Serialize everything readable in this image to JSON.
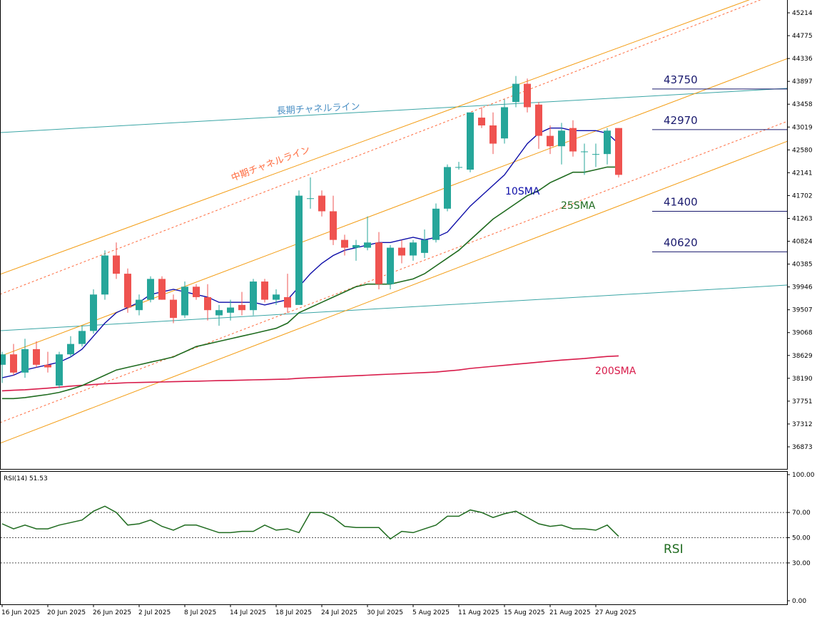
{
  "colors": {
    "bull": "#26a69a",
    "bear": "#ef5350",
    "sma10": "#0d0da8",
    "sma25": "#1f6b1f",
    "sma200": "#d81b4a",
    "mid_channel": "#f39c12",
    "mid_channel_dashed": "#ff6a3d",
    "long_channel": "#3aa5a5",
    "rsi": "#1f6b1f",
    "level_line": "#1a1a6e"
  },
  "annotations": {
    "long_channel_label": "長期チャネルライン",
    "mid_channel_label": "中期チャネルライン",
    "sma10_label": "10SMA",
    "sma25_label": "25SMA",
    "sma200_label": "200SMA",
    "rsi_label": "RSI"
  },
  "rsi_header": "RSI(14) 51.53",
  "chart_data": [
    {
      "type": "candlestick",
      "title": "",
      "grid": false,
      "ylim": [
        36500,
        45300
      ],
      "yticks": [
        "45214",
        "44775",
        "44336",
        "43897",
        "43458",
        "43019",
        "42580",
        "42141",
        "41702",
        "41263",
        "40824",
        "40385",
        "39946",
        "39507",
        "39068",
        "38629",
        "38190",
        "37751",
        "37312",
        "36873"
      ],
      "xticks": [
        "16 Jun 2025",
        "20 Jun 2025",
        "26 Jun 2025",
        "2 Jul 2025",
        "8 Jul 2025",
        "14 Jul 2025",
        "18 Jul 2025",
        "24 Jul 2025",
        "30 Jul 2025",
        "5 Aug 2025",
        "11 Aug 2025",
        "15 Aug 2025",
        "21 Aug 2025",
        "27 Aug 2025"
      ],
      "candles": [
        {
          "o": 38450,
          "h": 38700,
          "l": 38100,
          "c": 38650
        },
        {
          "o": 38650,
          "h": 38850,
          "l": 38250,
          "c": 38300
        },
        {
          "o": 38300,
          "h": 38950,
          "l": 38200,
          "c": 38750
        },
        {
          "o": 38750,
          "h": 38900,
          "l": 38400,
          "c": 38450
        },
        {
          "o": 38450,
          "h": 38700,
          "l": 38300,
          "c": 38400
        },
        {
          "o": 38050,
          "h": 38700,
          "l": 38000,
          "c": 38650
        },
        {
          "o": 38650,
          "h": 39000,
          "l": 38600,
          "c": 38850
        },
        {
          "o": 38850,
          "h": 39200,
          "l": 38800,
          "c": 39100
        },
        {
          "o": 39100,
          "h": 39900,
          "l": 39050,
          "c": 39800
        },
        {
          "o": 39800,
          "h": 40650,
          "l": 39700,
          "c": 40550
        },
        {
          "o": 40550,
          "h": 40800,
          "l": 40100,
          "c": 40200
        },
        {
          "o": 40200,
          "h": 40300,
          "l": 39450,
          "c": 39550
        },
        {
          "o": 39500,
          "h": 39800,
          "l": 39400,
          "c": 39700
        },
        {
          "o": 39700,
          "h": 40150,
          "l": 39650,
          "c": 40100
        },
        {
          "o": 40100,
          "h": 40150,
          "l": 39700,
          "c": 39700
        },
        {
          "o": 39700,
          "h": 39800,
          "l": 39250,
          "c": 39350
        },
        {
          "o": 39400,
          "h": 40050,
          "l": 39350,
          "c": 39950
        },
        {
          "o": 39950,
          "h": 40000,
          "l": 39700,
          "c": 39750
        },
        {
          "o": 39750,
          "h": 40000,
          "l": 39300,
          "c": 39500
        },
        {
          "o": 39400,
          "h": 39600,
          "l": 39200,
          "c": 39500
        },
        {
          "o": 39450,
          "h": 39700,
          "l": 39300,
          "c": 39550
        },
        {
          "o": 39600,
          "h": 39850,
          "l": 39400,
          "c": 39500
        },
        {
          "o": 39500,
          "h": 40100,
          "l": 39400,
          "c": 40050
        },
        {
          "o": 40050,
          "h": 40100,
          "l": 39650,
          "c": 39700
        },
        {
          "o": 39700,
          "h": 39900,
          "l": 39600,
          "c": 39800
        },
        {
          "o": 39750,
          "h": 40200,
          "l": 39450,
          "c": 39550
        },
        {
          "o": 39600,
          "h": 41800,
          "l": 39600,
          "c": 41700
        },
        {
          "o": 41650,
          "h": 42050,
          "l": 41450,
          "c": 41650
        },
        {
          "o": 41700,
          "h": 41800,
          "l": 41300,
          "c": 41400
        },
        {
          "o": 41400,
          "h": 41700,
          "l": 40750,
          "c": 40850
        },
        {
          "o": 40850,
          "h": 40950,
          "l": 40550,
          "c": 40700
        },
        {
          "o": 40700,
          "h": 40850,
          "l": 40450,
          "c": 40750
        },
        {
          "o": 40700,
          "h": 41300,
          "l": 40650,
          "c": 40800
        },
        {
          "o": 40800,
          "h": 41000,
          "l": 39900,
          "c": 40000
        },
        {
          "o": 40000,
          "h": 40750,
          "l": 39900,
          "c": 40700
        },
        {
          "o": 40700,
          "h": 40850,
          "l": 40400,
          "c": 40550
        },
        {
          "o": 40550,
          "h": 40850,
          "l": 40450,
          "c": 40800
        },
        {
          "o": 40600,
          "h": 41050,
          "l": 40500,
          "c": 40850
        },
        {
          "o": 40850,
          "h": 41550,
          "l": 40800,
          "c": 41450
        },
        {
          "o": 41450,
          "h": 42300,
          "l": 41400,
          "c": 42250
        },
        {
          "o": 42250,
          "h": 42350,
          "l": 42200,
          "c": 42250
        },
        {
          "o": 42200,
          "h": 43300,
          "l": 42150,
          "c": 43300
        },
        {
          "o": 43200,
          "h": 43400,
          "l": 43000,
          "c": 43050
        },
        {
          "o": 43050,
          "h": 43300,
          "l": 42500,
          "c": 42700
        },
        {
          "o": 42800,
          "h": 43550,
          "l": 42700,
          "c": 43400
        },
        {
          "o": 43500,
          "h": 44000,
          "l": 43400,
          "c": 43850
        },
        {
          "o": 43850,
          "h": 43950,
          "l": 43300,
          "c": 43400
        },
        {
          "o": 43450,
          "h": 43500,
          "l": 42600,
          "c": 42850
        },
        {
          "o": 42850,
          "h": 43050,
          "l": 42500,
          "c": 42650
        },
        {
          "o": 42650,
          "h": 43100,
          "l": 42300,
          "c": 42950
        },
        {
          "o": 43000,
          "h": 43150,
          "l": 42450,
          "c": 42550
        },
        {
          "o": 42550,
          "h": 42700,
          "l": 42100,
          "c": 42550
        },
        {
          "o": 42500,
          "h": 42700,
          "l": 42250,
          "c": 42500
        },
        {
          "o": 42500,
          "h": 43000,
          "l": 42300,
          "c": 42950
        },
        {
          "o": 43000,
          "h": 43000,
          "l": 42050,
          "c": 42100
        }
      ],
      "series": [
        {
          "name": "10SMA",
          "values": [
            38200,
            38250,
            38350,
            38400,
            38450,
            38500,
            38600,
            38750,
            39000,
            39250,
            39450,
            39550,
            39650,
            39800,
            39850,
            39900,
            39850,
            39800,
            39750,
            39650,
            39650,
            39650,
            39650,
            39600,
            39650,
            39700,
            39950,
            40200,
            40400,
            40550,
            40650,
            40700,
            40750,
            40800,
            40800,
            40850,
            40900,
            40850,
            40900,
            41000,
            41250,
            41500,
            41700,
            41900,
            42100,
            42400,
            42700,
            42900,
            43000,
            43000,
            42950,
            42950,
            42950,
            42900,
            42700
          ]
        },
        {
          "name": "25SMA",
          "values": [
            37800,
            37800,
            37820,
            37850,
            37880,
            37920,
            37980,
            38050,
            38150,
            38250,
            38350,
            38400,
            38450,
            38500,
            38550,
            38600,
            38700,
            38800,
            38850,
            38900,
            38950,
            39000,
            39050,
            39100,
            39150,
            39250,
            39450,
            39550,
            39650,
            39750,
            39850,
            39950,
            40000,
            40000,
            40000,
            40050,
            40100,
            40200,
            40350,
            40500,
            40650,
            40850,
            41050,
            41250,
            41400,
            41550,
            41700,
            41800,
            41950,
            42050,
            42150,
            42150,
            42200,
            42250,
            42250
          ]
        },
        {
          "name": "200SMA",
          "values": [
            37950,
            37960,
            37970,
            37985,
            38000,
            38020,
            38040,
            38055,
            38070,
            38085,
            38095,
            38105,
            38110,
            38115,
            38120,
            38125,
            38130,
            38135,
            38140,
            38145,
            38150,
            38155,
            38160,
            38165,
            38170,
            38175,
            38190,
            38200,
            38210,
            38220,
            38230,
            38240,
            38250,
            38260,
            38270,
            38280,
            38290,
            38300,
            38310,
            38330,
            38350,
            38380,
            38400,
            38420,
            38440,
            38460,
            38480,
            38500,
            38520,
            38540,
            38555,
            38570,
            38590,
            38610,
            38620
          ]
        }
      ],
      "horizontal_levels": [
        {
          "value": 43750,
          "label": "43750"
        },
        {
          "value": 42970,
          "label": "42970"
        },
        {
          "value": 41400,
          "label": "41400"
        },
        {
          "value": 40620,
          "label": "40620"
        }
      ]
    },
    {
      "type": "line",
      "title": "RSI(14) 51.53",
      "ylim": [
        0,
        100
      ],
      "yticks": [
        "100.00",
        "70.00",
        "50.00",
        "30.00",
        "0.00"
      ],
      "reference_levels": [
        70,
        50,
        30
      ],
      "series": [
        {
          "name": "RSI",
          "values": [
            61,
            57,
            60,
            57,
            57,
            60,
            62,
            64,
            71,
            75,
            70,
            60,
            61,
            64,
            59,
            56,
            60,
            60,
            57,
            54,
            54,
            55,
            55,
            60,
            56,
            57,
            54,
            70,
            70,
            66,
            59,
            58,
            58,
            58,
            49,
            55,
            54,
            57,
            60,
            67,
            67,
            72,
            70,
            66,
            69,
            71,
            66,
            61,
            59,
            60,
            57,
            57,
            56,
            60,
            51
          ]
        }
      ]
    }
  ]
}
